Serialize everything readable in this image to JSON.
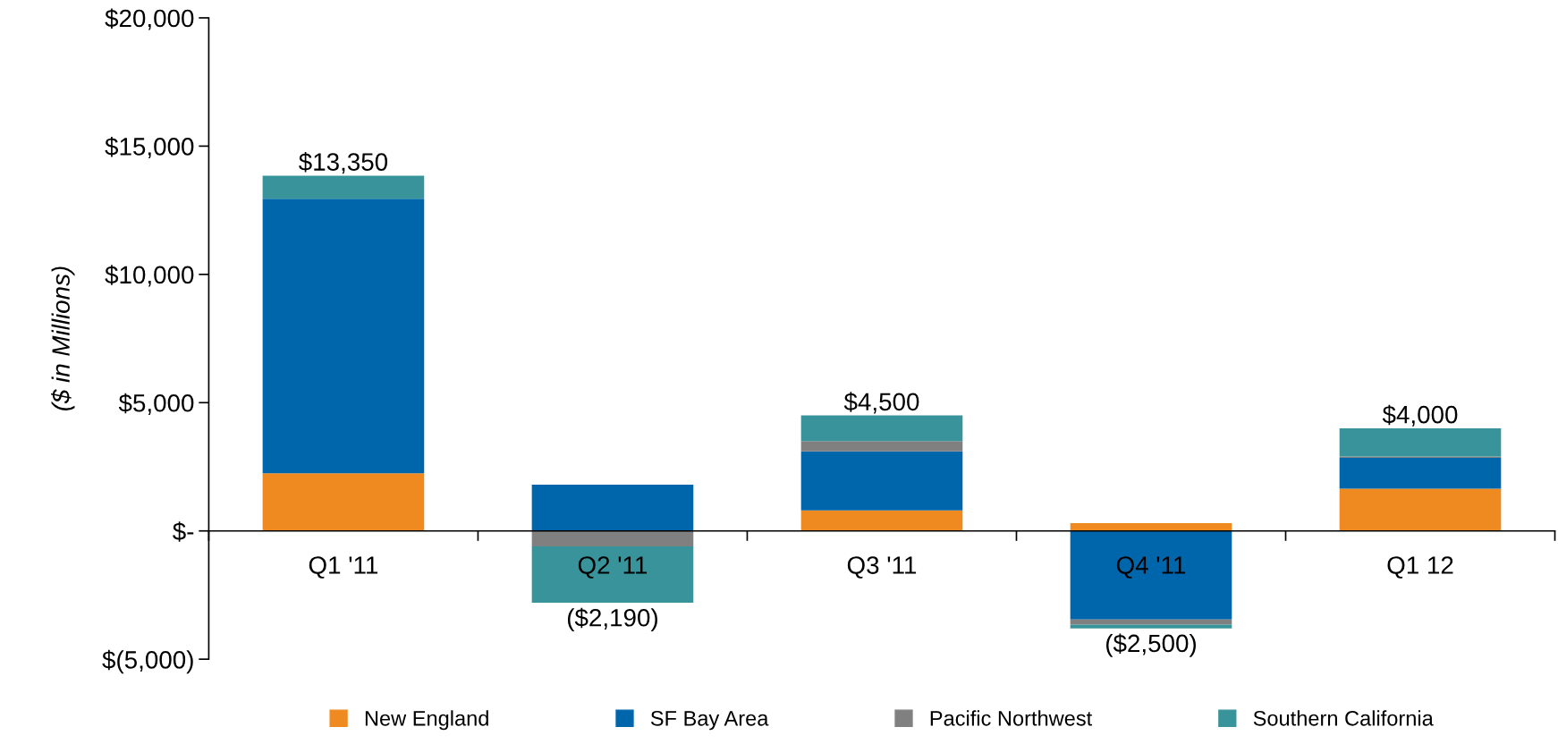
{
  "chart_data": {
    "type": "bar",
    "stacked": true,
    "ylabel": "($ in Millions)",
    "categories": [
      "Q1 '11",
      "Q2 '11",
      "Q3 '11",
      "Q4 '11",
      "Q1 12"
    ],
    "series": [
      {
        "name": "New England",
        "color": "#ee8a20",
        "values": [
          2250,
          0,
          800,
          300,
          1650
        ]
      },
      {
        "name": "SF Bay Area",
        "color": "#0066ac",
        "values": [
          10700,
          1800,
          2300,
          -3450,
          1200
        ]
      },
      {
        "name": "Pacific Northwest",
        "color": "#808080",
        "values": [
          0,
          -600,
          400,
          -200,
          50
        ]
      },
      {
        "name": "Southern California",
        "color": "#38939a",
        "values": [
          900,
          -2200,
          1000,
          -150,
          1100
        ]
      }
    ],
    "annotations": [
      {
        "text": "$13,350",
        "x": "Q1 '11",
        "y": 13850
      },
      {
        "text": "($2,190)",
        "x": "Q2 '11",
        "y": -2800
      },
      {
        "text": "$4,500",
        "x": "Q3 '11",
        "y": 4500
      },
      {
        "text": "($2,500)",
        "x": "Q4 '11",
        "y": -3800
      },
      {
        "text": "$4,000",
        "x": "Q1 12",
        "y": 4000
      }
    ],
    "ylim": [
      -5000,
      20000
    ],
    "yticks": [
      {
        "value": -5000,
        "label": "$(5,000)"
      },
      {
        "value": 0,
        "label": "$-"
      },
      {
        "value": 5000,
        "label": "$5,000"
      },
      {
        "value": 10000,
        "label": "$10,000"
      },
      {
        "value": 15000,
        "label": "$15,000"
      },
      {
        "value": 20000,
        "label": "$20,000"
      }
    ],
    "grid": false,
    "legend": "bottom"
  }
}
